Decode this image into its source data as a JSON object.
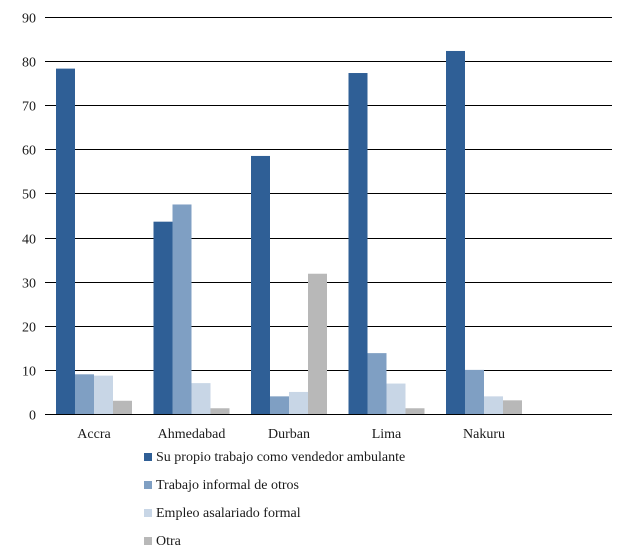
{
  "chart_data": {
    "type": "bar",
    "categories": [
      "Accra",
      "Ahmedabad",
      "Durban",
      "Lima",
      "Nakuru"
    ],
    "series": [
      {
        "name": "Su propio trabajo como vendedor ambulante",
        "color": "#2f5f96",
        "values": [
          78.3,
          43.6,
          58.5,
          77.3,
          82.3
        ]
      },
      {
        "name": "Trabajo informal de otros",
        "color": "#7f9fc3",
        "values": [
          9.0,
          47.5,
          4.0,
          13.8,
          10.0
        ]
      },
      {
        "name": "Empleo asalariado formal",
        "color": "#c8d6e6",
        "values": [
          8.7,
          7.0,
          5.0,
          6.9,
          4.0
        ]
      },
      {
        "name": "Otra",
        "color": "#b8b8b8",
        "values": [
          3.0,
          1.3,
          31.8,
          1.3,
          3.1
        ]
      }
    ],
    "title": "",
    "xlabel": "",
    "ylabel": "",
    "ylim": [
      0,
      90
    ],
    "yticks": [
      "0",
      "10",
      "20",
      "30",
      "40",
      "50",
      "60",
      "70",
      "80",
      "90"
    ],
    "grid": true,
    "legend_position": "bottom"
  }
}
